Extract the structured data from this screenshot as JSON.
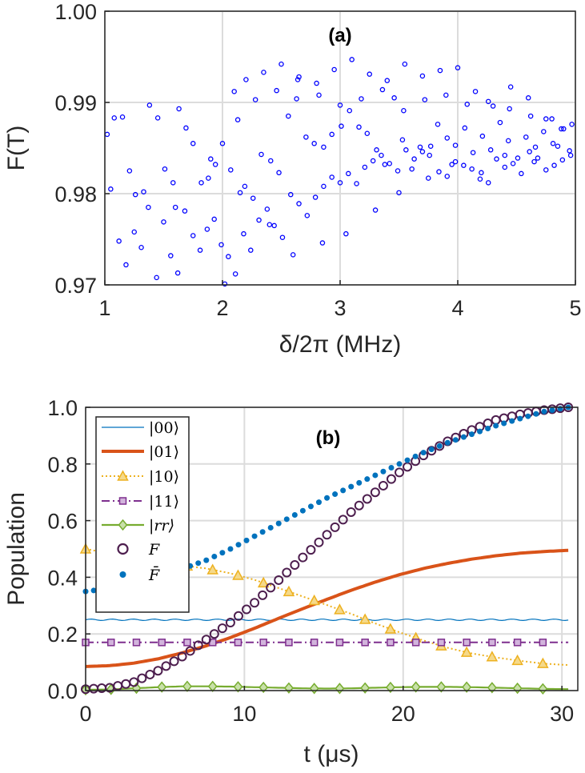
{
  "colors": {
    "scatter": "#0000ff",
    "s00": "#0072bd",
    "s01": "#d95319",
    "s10": "#edb120",
    "s11": "#7e2f8e",
    "srr": "#77ac30",
    "fid": "#4d1e4e",
    "fbar": "#0072bd"
  },
  "chart_data": [
    {
      "type": "scatter",
      "panel_label": "(a)",
      "xlabel": "δ/2π (MHz)",
      "ylabel": "F(T)",
      "xlim": [
        1,
        5
      ],
      "ylim": [
        0.97,
        1.0
      ],
      "xticks": [
        "1",
        "2",
        "3",
        "4",
        "5"
      ],
      "yticks": [
        "0.97",
        "0.98",
        "0.99",
        "1.00"
      ],
      "grid": true,
      "series": [
        {
          "name": "F(T)",
          "marker": "open-circle",
          "x": [
            1.02,
            1.08,
            1.15,
            1.21,
            1.26,
            1.33,
            1.38,
            1.45,
            1.51,
            1.58,
            1.63,
            1.69,
            1.75,
            1.82,
            1.88,
            1.94,
            2.0,
            2.07,
            2.13,
            2.19,
            2.26,
            2.33,
            2.41,
            2.48,
            2.56,
            2.63,
            2.71,
            2.78,
            2.86,
            2.93,
            3.01,
            3.08,
            3.16,
            3.23,
            3.31,
            3.38,
            3.46,
            3.53,
            3.61,
            3.68,
            3.76,
            3.83,
            3.91,
            3.98,
            4.06,
            4.13,
            4.21,
            4.28,
            4.36,
            4.43,
            4.51,
            4.58,
            4.66,
            4.73,
            4.81,
            4.88,
            4.95,
            1.05,
            1.12,
            1.18,
            1.25,
            1.31,
            1.37,
            1.44,
            1.5,
            1.56,
            1.62,
            1.68,
            1.75,
            1.81,
            1.87,
            1.93,
            1.99,
            2.05,
            2.11,
            2.18,
            2.24,
            2.31,
            2.38,
            2.44,
            2.51,
            2.58,
            2.65,
            2.72,
            2.79,
            2.86,
            2.93,
            3.0,
            3.07,
            3.14,
            3.21,
            3.28,
            3.35,
            3.42,
            3.49,
            3.56,
            3.63,
            3.7,
            3.77,
            3.84,
            3.91,
            3.98,
            4.05,
            4.12,
            4.19,
            4.26,
            4.33,
            4.4,
            4.47,
            4.54,
            4.61,
            4.68,
            4.75,
            4.82,
            4.89,
            4.96,
            2.2,
            2.35,
            2.5,
            2.65,
            2.8,
            2.95,
            3.1,
            3.25,
            3.4,
            3.55,
            3.7,
            3.85,
            4.0,
            4.15,
            4.3,
            4.45,
            4.6,
            4.75,
            4.9,
            2.1,
            2.28,
            2.46,
            2.64,
            2.82,
            3.0,
            3.18,
            3.36,
            3.54,
            3.72,
            3.9,
            4.08,
            4.26,
            4.44,
            4.62,
            4.8,
            4.97,
            1.6,
            1.9,
            2.15,
            2.4,
            2.6,
            2.85,
            3.05,
            3.3,
            3.5,
            3.75,
            3.95,
            4.2,
            4.4,
            4.65,
            4.85,
            2.02
          ],
          "y": [
            0.9865,
            0.9883,
            0.9884,
            0.9825,
            0.9799,
            0.9802,
            0.9897,
            0.9883,
            0.9827,
            0.9812,
            0.9893,
            0.9872,
            0.9855,
            0.9812,
            0.9817,
            0.9832,
            0.9855,
            0.9826,
            0.9881,
            0.9808,
            0.9795,
            0.9843,
            0.9836,
            0.9823,
            0.9885,
            0.9904,
            0.9862,
            0.9855,
            0.9851,
            0.9865,
            0.9874,
            0.9891,
            0.9873,
            0.9866,
            0.9848,
            0.9832,
            0.9905,
            0.9859,
            0.9827,
            0.9851,
            0.9842,
            0.9876,
            0.9861,
            0.9853,
            0.9872,
            0.9845,
            0.9863,
            0.9848,
            0.9878,
            0.9858,
            0.9839,
            0.9862,
            0.9851,
            0.9868,
            0.9855,
            0.9871,
            0.9847,
            0.9805,
            0.9748,
            0.9722,
            0.9758,
            0.9741,
            0.9785,
            0.9708,
            0.9769,
            0.9732,
            0.9713,
            0.9781,
            0.9754,
            0.9738,
            0.9761,
            0.9772,
            0.9744,
            0.9731,
            0.9712,
            0.9756,
            0.9738,
            0.9771,
            0.9783,
            0.9765,
            0.9752,
            0.9799,
            0.9789,
            0.9776,
            0.9796,
            0.9808,
            0.9818,
            0.9812,
            0.9822,
            0.9811,
            0.9829,
            0.9836,
            0.9842,
            0.9833,
            0.9825,
            0.9848,
            0.9838,
            0.9846,
            0.9852,
            0.9824,
            0.9819,
            0.9835,
            0.9831,
            0.9827,
            0.9816,
            0.9812,
            0.9838,
            0.9829,
            0.9833,
            0.9822,
            0.9846,
            0.9839,
            0.9826,
            0.9831,
            0.9837,
            0.9842,
            0.9925,
            0.9933,
            0.9942,
            0.9928,
            0.9921,
            0.9936,
            0.9947,
            0.9931,
            0.9924,
            0.9942,
            0.9929,
            0.9935,
            0.9938,
            0.9912,
            0.9896,
            0.9917,
            0.9905,
            0.9882,
            0.9871,
            0.9912,
            0.9903,
            0.9913,
            0.9925,
            0.9908,
            0.9897,
            0.9904,
            0.9914,
            0.9891,
            0.9903,
            0.9908,
            0.9898,
            0.9901,
            0.9893,
            0.9885,
            0.9882,
            0.9876,
            0.9785,
            0.9838,
            0.9801,
            0.9766,
            0.9733,
            0.9746,
            0.9756,
            0.9782,
            0.9801,
            0.9817,
            0.9832,
            0.9823,
            0.9842,
            0.9835,
            0.9852,
            0.9701
          ]
        }
      ]
    },
    {
      "type": "line",
      "panel_label": "(b)",
      "xlabel": "t (μs)",
      "ylabel": "Population",
      "xlim": [
        0,
        31
      ],
      "ylim": [
        0,
        1.0
      ],
      "xticks": [
        "0",
        "10",
        "20",
        "30"
      ],
      "yticks": [
        "0.0",
        "0.2",
        "0.4",
        "0.6",
        "0.8",
        "1.0"
      ],
      "grid": true,
      "legend_position": "top-left",
      "x": [
        0,
        1.52,
        3.04,
        4.56,
        6.08,
        7.6,
        9.12,
        10.64,
        12.16,
        13.68,
        15.2,
        16.72,
        18.24,
        19.76,
        21.28,
        22.8,
        24.32,
        25.84,
        27.36,
        28.88,
        30.4
      ],
      "series": [
        {
          "name": "|00⟩",
          "values": [
            0.25,
            0.25,
            0.25,
            0.25,
            0.25,
            0.25,
            0.25,
            0.25,
            0.25,
            0.25,
            0.25,
            0.25,
            0.25,
            0.25,
            0.25,
            0.25,
            0.25,
            0.25,
            0.25,
            0.25,
            0.25
          ]
        },
        {
          "name": "|01⟩",
          "values": [
            0.085,
            0.088,
            0.097,
            0.112,
            0.133,
            0.158,
            0.187,
            0.22,
            0.255,
            0.289,
            0.322,
            0.354,
            0.383,
            0.409,
            0.431,
            0.449,
            0.464,
            0.476,
            0.485,
            0.491,
            0.495
          ]
        },
        {
          "name": "|10⟩",
          "values": [
            0.5,
            0.484,
            0.471,
            0.458,
            0.442,
            0.431,
            0.414,
            0.391,
            0.362,
            0.332,
            0.302,
            0.271,
            0.237,
            0.206,
            0.177,
            0.151,
            0.131,
            0.117,
            0.105,
            0.095,
            0.09
          ]
        },
        {
          "name": "|11⟩",
          "values": [
            0.17,
            0.17,
            0.17,
            0.17,
            0.17,
            0.17,
            0.17,
            0.17,
            0.17,
            0.17,
            0.17,
            0.17,
            0.17,
            0.17,
            0.17,
            0.17,
            0.17,
            0.17,
            0.17,
            0.17,
            0.17
          ]
        },
        {
          "name": "|rr⟩",
          "values": [
            0.003,
            0.004,
            0.008,
            0.012,
            0.015,
            0.015,
            0.014,
            0.012,
            0.01,
            0.008,
            0.007,
            0.008,
            0.01,
            0.012,
            0.013,
            0.013,
            0.012,
            0.01,
            0.008,
            0.006,
            0.005
          ]
        },
        {
          "name": "F",
          "values": [
            0.005,
            0.01,
            0.03,
            0.07,
            0.12,
            0.18,
            0.24,
            0.31,
            0.39,
            0.47,
            0.55,
            0.63,
            0.7,
            0.77,
            0.83,
            0.88,
            0.92,
            0.955,
            0.975,
            0.99,
            1.0
          ]
        },
        {
          "name": "F̄",
          "values": [
            0.35,
            0.36,
            0.38,
            0.405,
            0.43,
            0.46,
            0.5,
            0.545,
            0.59,
            0.635,
            0.68,
            0.72,
            0.76,
            0.8,
            0.84,
            0.875,
            0.905,
            0.935,
            0.96,
            0.985,
            1.0
          ]
        }
      ]
    }
  ]
}
